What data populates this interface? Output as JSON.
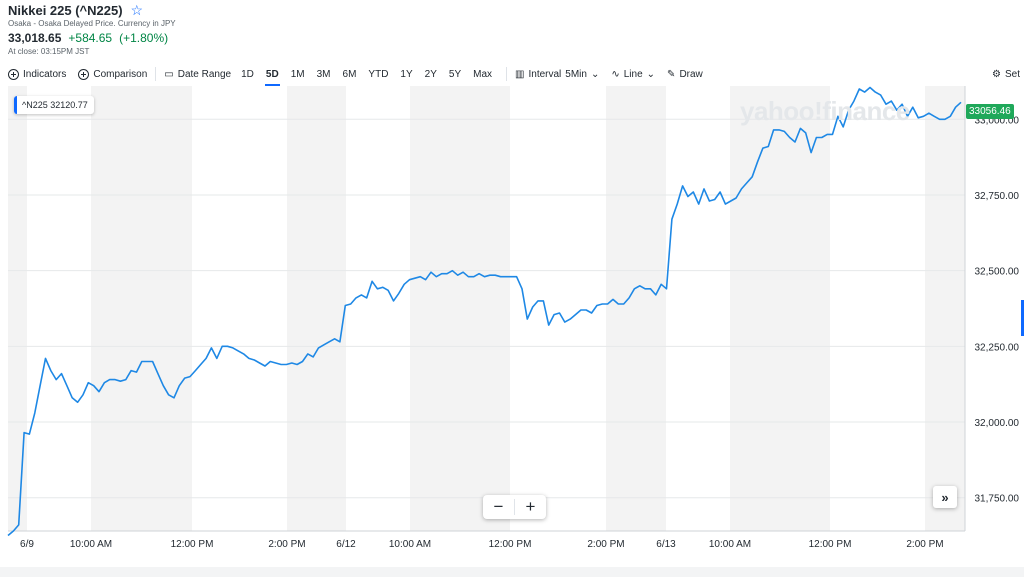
{
  "header": {
    "title": "Nikkei 225 (^N225)",
    "star_icon": "star-icon",
    "subtitle": "Osaka - Osaka Delayed Price. Currency in JPY",
    "price": "33,018.65",
    "change": "+584.65",
    "change_pct": "(+1.80%)",
    "close_time": "At close: 03:15PM JST"
  },
  "toolbar": {
    "indicators": "Indicators",
    "comparison": "Comparison",
    "date_range": "Date Range",
    "ranges": [
      "1D",
      "5D",
      "1M",
      "3M",
      "6M",
      "YTD",
      "1Y",
      "2Y",
      "5Y",
      "Max"
    ],
    "active_range": "5D",
    "interval_label": "Interval",
    "interval_value": "5Min",
    "line_label": "Line",
    "draw_label": "Draw",
    "settings_label": "Set"
  },
  "chart_overlay": {
    "symbol_tag": "^N225",
    "symbol_value": "32120.77",
    "watermark": "yahoo!finance",
    "last_price_label": "33056.46"
  },
  "colors": {
    "line": "#1e88e5",
    "session_shade": "#f3f3f3",
    "last_label": "#1fa85a",
    "accent": "#0f69ff"
  },
  "chart_data": {
    "type": "line",
    "y_ticks": [
      "33,000.00",
      "32,750.00",
      "32,500.00",
      "32,250.00",
      "32,000.00",
      "31,750.00"
    ],
    "y_tick_values": [
      33000,
      32750,
      32500,
      32250,
      32000,
      31750
    ],
    "ylim": [
      31640,
      33110
    ],
    "x_tick_labels": [
      "6/9",
      "10:00 AM",
      "12:00 PM",
      "2:00 PM",
      "6/12",
      "10:00 AM",
      "12:00 PM",
      "2:00 PM",
      "6/13",
      "10:00 AM",
      "12:00 PM",
      "2:00 PM"
    ],
    "grid": true,
    "series": [
      {
        "values": [
          31625,
          31640,
          31660,
          31965,
          31960,
          32030,
          32120,
          32210,
          32170,
          32140,
          32160,
          32120,
          32080,
          32065,
          32090,
          32130,
          32120,
          32100,
          32130,
          32140,
          32140,
          32135,
          32140,
          32170,
          32165,
          32200,
          32200,
          32200,
          32160,
          32120,
          32090,
          32080,
          32120,
          32145,
          32150,
          32170,
          32190,
          32210,
          32245,
          32210,
          32250,
          32250,
          32245,
          32235,
          32225,
          32210,
          32205,
          32195,
          32185,
          32200,
          32195,
          32190,
          32190,
          32195,
          32190,
          32200,
          32225,
          32215,
          32245,
          32255,
          32265,
          32275,
          32265,
          32385,
          32390,
          32410,
          32420,
          32410,
          32465,
          32440,
          32445,
          32435,
          32400,
          32425,
          32455,
          32470,
          32475,
          32480,
          32470,
          32495,
          32480,
          32490,
          32490,
          32500,
          32485,
          32495,
          32480,
          32480,
          32490,
          32480,
          32485,
          32485,
          32480,
          32480,
          32480,
          32480,
          32440,
          32340,
          32380,
          32400,
          32400,
          32320,
          32355,
          32360,
          32330,
          32340,
          32355,
          32370,
          32370,
          32360,
          32385,
          32390,
          32390,
          32405,
          32390,
          32390,
          32410,
          32440,
          32450,
          32440,
          32440,
          32420,
          32455,
          32440,
          32670,
          32720,
          32780,
          32745,
          32760,
          32720,
          32770,
          32730,
          32735,
          32760,
          32720,
          32730,
          32740,
          32770,
          32790,
          32810,
          32860,
          32905,
          32910,
          32965,
          32965,
          32960,
          32940,
          32925,
          32970,
          32955,
          32890,
          32940,
          32940,
          32950,
          32950,
          33010,
          32975,
          33030,
          33060,
          33100,
          33090,
          33105,
          33090,
          33080,
          33050,
          33060,
          33030,
          33050,
          33010,
          33040,
          33005,
          33010,
          33020,
          33010,
          33000,
          33000,
          33010,
          33040,
          33056
        ]
      }
    ]
  }
}
